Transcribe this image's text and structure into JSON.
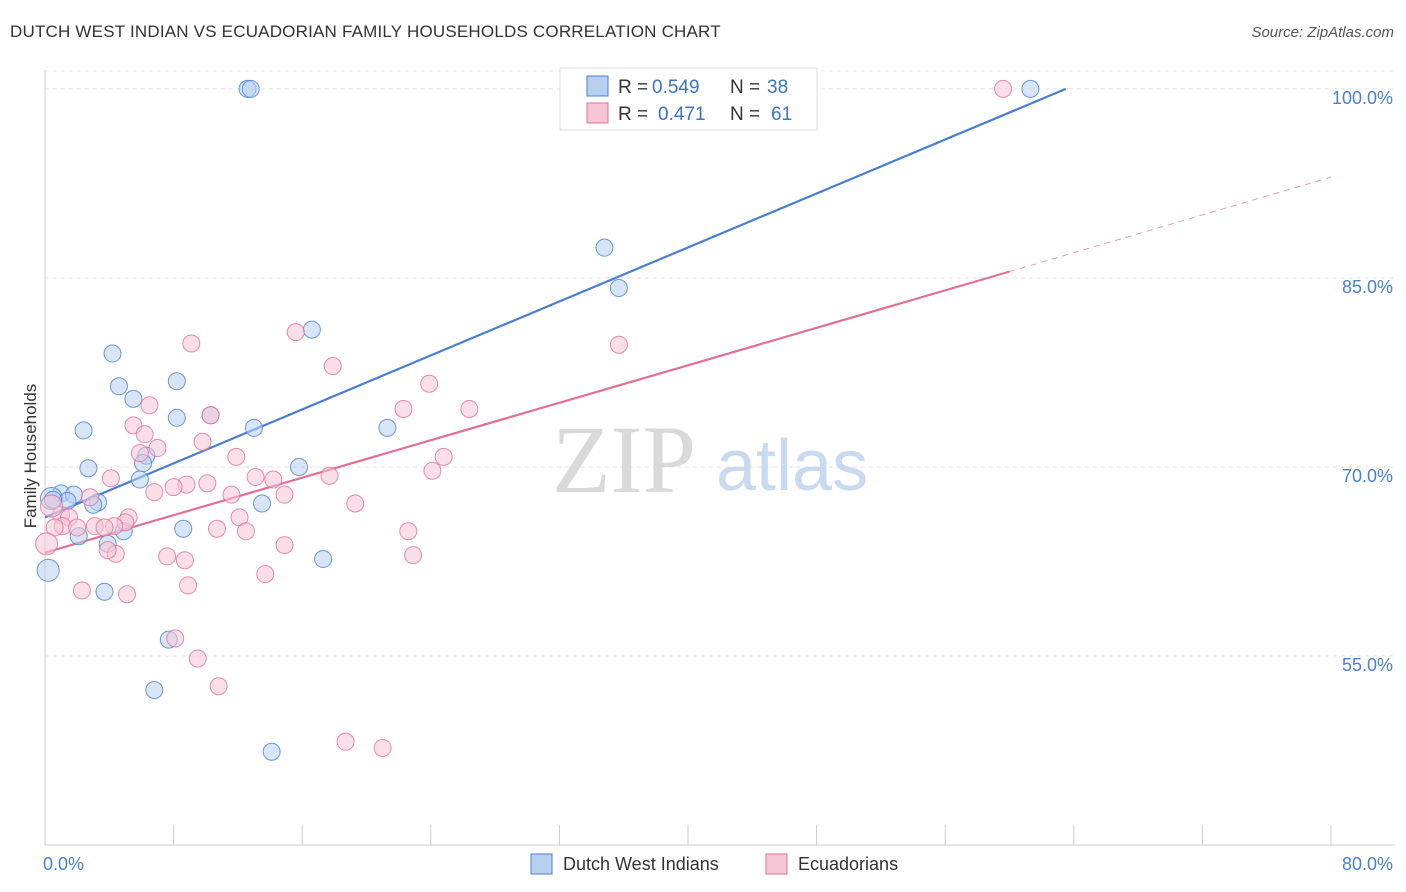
{
  "chart_data": {
    "type": "scatter",
    "title": "DUTCH WEST INDIAN VS ECUADORIAN FAMILY HOUSEHOLDS CORRELATION CHART",
    "source": "Source: ZipAtlas.com",
    "xlabel": "",
    "ylabel": "Family Households",
    "xlim": [
      0,
      80
    ],
    "ylim": [
      40,
      101.5
    ],
    "x_tick_labels": [
      "0.0%",
      "80.0%"
    ],
    "y_ticks": [
      55,
      70,
      85,
      100
    ],
    "y_tick_labels": [
      "55.0%",
      "70.0%",
      "85.0%",
      "100.0%"
    ],
    "grid": true,
    "watermark": {
      "zip": "ZIP",
      "atlas": "atlas"
    },
    "legend": {
      "r_label": "R =",
      "n_label": "N =",
      "entries": [
        {
          "name": "Dutch West Indians",
          "r": "0.549",
          "n": "38"
        },
        {
          "name": "Ecuadorians",
          "r": "0.471",
          "n": "61"
        }
      ]
    },
    "series": [
      {
        "name": "Dutch West Indians",
        "color": "#4a7fcf",
        "fill": "#b8d0f0",
        "trend": {
          "x0": 0,
          "y0": 66.0,
          "x1": 63.5,
          "y1": 100.0,
          "dashed_to": null
        },
        "points": [
          [
            12.6,
            100
          ],
          [
            12.8,
            100
          ],
          [
            61.3,
            100
          ],
          [
            34.8,
            87.4
          ],
          [
            35.7,
            84.2
          ],
          [
            16.6,
            80.9
          ],
          [
            4.2,
            79.0
          ],
          [
            8.2,
            76.8
          ],
          [
            4.6,
            76.4
          ],
          [
            5.5,
            75.4
          ],
          [
            8.2,
            73.9
          ],
          [
            10.3,
            74.1
          ],
          [
            2.4,
            72.9
          ],
          [
            13.0,
            73.1
          ],
          [
            21.3,
            73.1
          ],
          [
            6.3,
            70.9
          ],
          [
            6.1,
            70.3
          ],
          [
            2.7,
            69.9
          ],
          [
            15.8,
            70.0
          ],
          [
            5.9,
            69.0
          ],
          [
            1.0,
            67.9
          ],
          [
            1.8,
            67.8
          ],
          [
            0.4,
            67.5
          ],
          [
            1.4,
            67.3
          ],
          [
            3.3,
            67.2
          ],
          [
            13.5,
            67.1
          ],
          [
            3.0,
            67.0
          ],
          [
            8.6,
            65.1
          ],
          [
            4.9,
            64.9
          ],
          [
            2.1,
            64.5
          ],
          [
            3.9,
            63.9
          ],
          [
            17.3,
            62.7
          ],
          [
            0.2,
            61.8
          ],
          [
            3.7,
            60.1
          ],
          [
            7.7,
            56.3
          ],
          [
            6.8,
            52.3
          ],
          [
            14.1,
            47.4
          ],
          [
            0.5,
            67.4
          ]
        ]
      },
      {
        "name": "Ecuadorians",
        "color": "#e0709a",
        "fill": "#f6c5d6",
        "trend": {
          "x0": 0,
          "y0": 63.2,
          "x1": 60.0,
          "y1": 85.5,
          "dashed_to": {
            "x": 80,
            "y": 93.0
          }
        },
        "points": [
          [
            59.6,
            100
          ],
          [
            15.6,
            80.7
          ],
          [
            9.1,
            79.8
          ],
          [
            35.7,
            79.7
          ],
          [
            17.9,
            78.0
          ],
          [
            23.9,
            76.6
          ],
          [
            26.4,
            74.6
          ],
          [
            22.3,
            74.6
          ],
          [
            6.5,
            74.9
          ],
          [
            10.3,
            74.1
          ],
          [
            5.5,
            73.3
          ],
          [
            6.2,
            72.6
          ],
          [
            9.8,
            72.0
          ],
          [
            7.0,
            71.5
          ],
          [
            5.9,
            71.1
          ],
          [
            11.9,
            70.8
          ],
          [
            24.8,
            70.8
          ],
          [
            24.1,
            69.7
          ],
          [
            17.7,
            69.3
          ],
          [
            13.1,
            69.2
          ],
          [
            14.2,
            69.0
          ],
          [
            4.1,
            69.1
          ],
          [
            10.1,
            68.7
          ],
          [
            8.8,
            68.6
          ],
          [
            8.0,
            68.4
          ],
          [
            6.8,
            68.0
          ],
          [
            11.6,
            67.8
          ],
          [
            14.9,
            67.8
          ],
          [
            2.8,
            67.6
          ],
          [
            19.3,
            67.1
          ],
          [
            1.0,
            66.2
          ],
          [
            1.5,
            66.0
          ],
          [
            5.2,
            66.0
          ],
          [
            12.1,
            66.0
          ],
          [
            5.0,
            65.6
          ],
          [
            1.1,
            65.3
          ],
          [
            3.1,
            65.3
          ],
          [
            0.6,
            65.2
          ],
          [
            4.3,
            65.3
          ],
          [
            2.0,
            65.2
          ],
          [
            3.7,
            65.2
          ],
          [
            10.7,
            65.1
          ],
          [
            12.5,
            64.9
          ],
          [
            22.6,
            64.9
          ],
          [
            14.9,
            63.8
          ],
          [
            0.1,
            63.9
          ],
          [
            4.4,
            63.1
          ],
          [
            7.6,
            62.9
          ],
          [
            8.7,
            62.6
          ],
          [
            22.9,
            63.0
          ],
          [
            13.7,
            61.5
          ],
          [
            8.9,
            60.6
          ],
          [
            2.3,
            60.2
          ],
          [
            5.1,
            59.9
          ],
          [
            8.1,
            56.4
          ],
          [
            9.5,
            54.8
          ],
          [
            10.8,
            52.6
          ],
          [
            18.7,
            48.2
          ],
          [
            21.0,
            47.7
          ],
          [
            0.4,
            66.9
          ],
          [
            3.9,
            63.4
          ]
        ]
      }
    ]
  }
}
